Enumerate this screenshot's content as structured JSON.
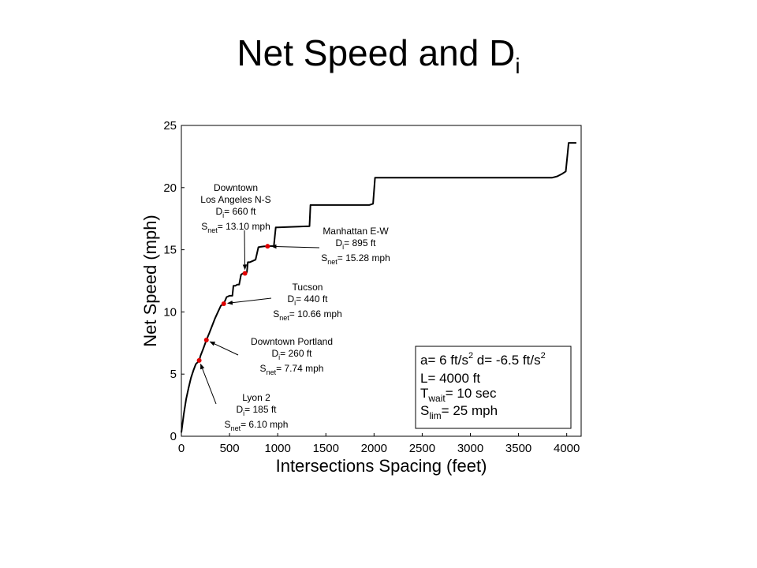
{
  "slide": {
    "title_main": "Net Speed and D",
    "title_sub": "i"
  },
  "chart_data": {
    "type": "line",
    "xlabel": "Intersections Spacing (feet)",
    "ylabel": "Net Speed (mph)",
    "xlim": [
      0,
      4150
    ],
    "ylim": [
      0,
      25
    ],
    "xticks": [
      0,
      500,
      1000,
      1500,
      2000,
      2500,
      3000,
      3500,
      4000
    ],
    "yticks": [
      0,
      5,
      10,
      15,
      20,
      25
    ],
    "grid": false,
    "series": [
      {
        "x": [
          0,
          25,
          50,
          75,
          100,
          125,
          150,
          175,
          185,
          200,
          225,
          260,
          290,
          320,
          350,
          380,
          410,
          440,
          470,
          500,
          530,
          540,
          560,
          580,
          600,
          620,
          640,
          660,
          680,
          690,
          710,
          740,
          770,
          800,
          830,
          860,
          895,
          930,
          960,
          980,
          1000,
          1330,
          1340,
          1360,
          1950,
          1990,
          2010,
          3850,
          3900,
          3950,
          3990,
          4010,
          4020,
          4050,
          4100
        ],
        "y": [
          0.3,
          1.8,
          3.0,
          3.9,
          4.7,
          5.3,
          5.8,
          6.0,
          6.1,
          6.5,
          7.0,
          7.74,
          8.3,
          8.9,
          9.5,
          10.0,
          10.5,
          10.66,
          11.2,
          11.3,
          11.3,
          12.1,
          12.1,
          12.2,
          12.2,
          13.0,
          13.1,
          13.1,
          13.2,
          14.0,
          14.0,
          14.1,
          14.2,
          15.2,
          15.25,
          15.28,
          15.28,
          15.3,
          15.3,
          16.8,
          16.8,
          16.9,
          18.6,
          18.6,
          18.6,
          18.7,
          20.8,
          20.8,
          20.9,
          21.1,
          21.3,
          22.8,
          23.6,
          23.6,
          23.6
        ]
      }
    ],
    "markers": [
      {
        "x": 185,
        "y": 6.1,
        "color": "#e00000"
      },
      {
        "x": 260,
        "y": 7.74,
        "color": "#e00000"
      },
      {
        "x": 440,
        "y": 10.66,
        "color": "#e00000"
      },
      {
        "x": 660,
        "y": 13.1,
        "color": "#e00000"
      },
      {
        "x": 895,
        "y": 15.28,
        "color": "#e00000"
      }
    ],
    "annotations": [
      {
        "id": "lyon",
        "lines": [
          "Lyon 2"
        ],
        "d_label": "D",
        "d_sub": "i",
        "d_value": "= 185 ft",
        "s_label": "S",
        "s_sub": "net",
        "s_value": "= 6.10 mph",
        "target": {
          "x": 185,
          "y": 6.1
        }
      },
      {
        "id": "portland",
        "lines": [
          "Downtown Portland"
        ],
        "d_label": "D",
        "d_sub": "i",
        "d_value": "= 260 ft",
        "s_label": "S",
        "s_sub": "net",
        "s_value": "= 7.74 mph",
        "target": {
          "x": 260,
          "y": 7.74
        }
      },
      {
        "id": "tucson",
        "lines": [
          "Tucson"
        ],
        "d_label": "D",
        "d_sub": "i",
        "d_value": "= 440 ft",
        "s_label": "S",
        "s_sub": "net",
        "s_value": "= 10.66 mph",
        "target": {
          "x": 440,
          "y": 10.66
        }
      },
      {
        "id": "la",
        "lines": [
          "Downtown",
          "Los Angeles N-S"
        ],
        "d_label": "D",
        "d_sub": "i",
        "d_value": "= 660 ft",
        "s_label": "S",
        "s_sub": "net",
        "s_value": "= 13.10 mph",
        "target": {
          "x": 660,
          "y": 13.1
        }
      },
      {
        "id": "manhattan",
        "lines": [
          "Manhattan E-W"
        ],
        "d_label": "D",
        "d_sub": "i",
        "d_value": "= 895 ft",
        "s_label": "S",
        "s_sub": "net",
        "s_value": "= 15.28 mph",
        "target": {
          "x": 895,
          "y": 15.28
        }
      }
    ],
    "param_box": {
      "a_text": "a= 6 ft/s",
      "a_sup": "2",
      "d_text": "d= -6.5 ft/s",
      "d_sup": "2",
      "L_text": "L= 4000 ft",
      "t_label": "T",
      "t_sub": "wait",
      "t_value": "= 10 sec",
      "s_label": "S",
      "s_sub": "lim",
      "s_value": "= 25 mph"
    }
  }
}
